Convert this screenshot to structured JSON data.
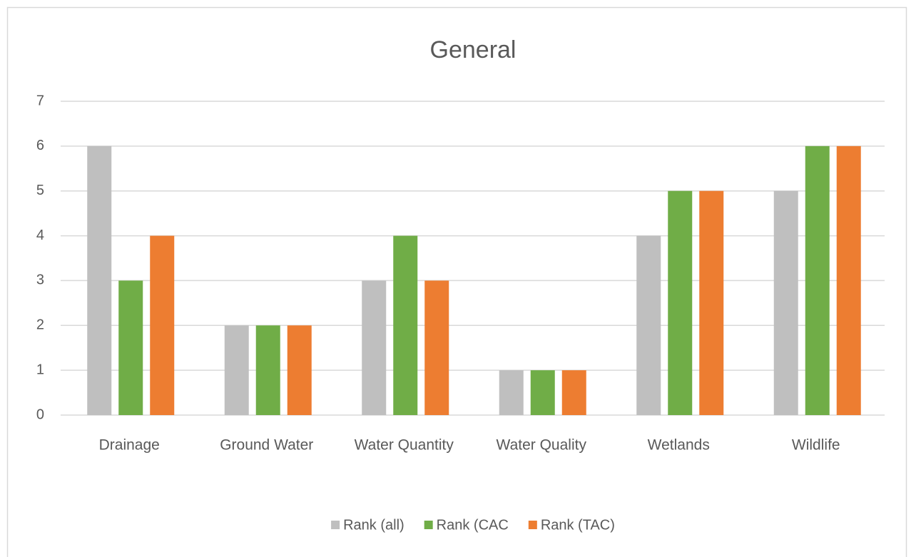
{
  "chart_data": {
    "type": "bar",
    "title": "General",
    "categories": [
      "Drainage",
      "Ground Water",
      "Water Quantity",
      "Water Quality",
      "Wetlands",
      "Wildlife"
    ],
    "series": [
      {
        "name": "Rank (all)",
        "color": "#bfbfbf",
        "values": [
          6,
          2,
          3,
          1,
          4,
          5
        ]
      },
      {
        "name": "Rank (CAC",
        "color": "#70ad47",
        "values": [
          3,
          2,
          4,
          1,
          5,
          6
        ]
      },
      {
        "name": "Rank (TAC)",
        "color": "#ed7d31",
        "values": [
          4,
          2,
          3,
          1,
          5,
          6
        ]
      }
    ],
    "ylim": [
      0,
      7
    ],
    "yticks": [
      0,
      1,
      2,
      3,
      4,
      5,
      6,
      7
    ],
    "grid": true,
    "legend": "bottom"
  }
}
